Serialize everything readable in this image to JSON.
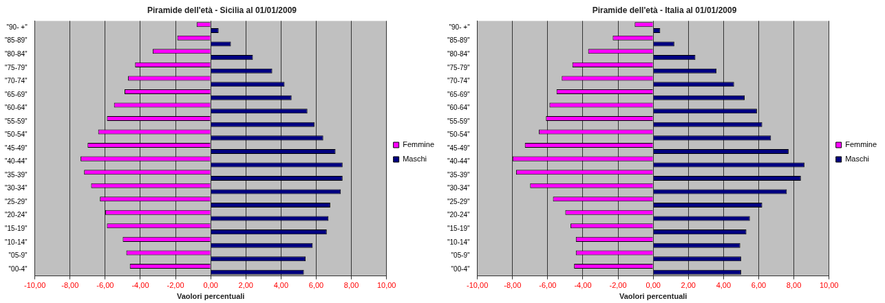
{
  "chart_data": [
    {
      "type": "bar",
      "orientation": "horizontal",
      "title": "Piramide dell'età - Sicilia al 01/01/2009",
      "xlabel": "Vaolori percentuali",
      "categories": [
        "\"90- +\"",
        "\"85-89\"",
        "\"80-84\"",
        "\"75-79\"",
        "\"70-74\"",
        "\"65-69\"",
        "\"60-64\"",
        "\"55-59\"",
        "\"50-54\"",
        "\"45-49\"",
        "\"40-44\"",
        "\"35-39\"",
        "\"30-34\"",
        "\"25-29\"",
        "\"20-24\"",
        "\"15-19\"",
        "\"10-14\"",
        "\"05-9\"",
        "\"00-4\""
      ],
      "series": [
        {
          "name": "Femmine",
          "color": "#ff00ff",
          "values": [
            -0.8,
            -1.9,
            -3.3,
            -4.3,
            -4.7,
            -4.9,
            -5.5,
            -5.9,
            -6.4,
            -7.0,
            -7.4,
            -7.2,
            -6.8,
            -6.3,
            -6.0,
            -5.9,
            -5.0,
            -4.8,
            -4.6
          ]
        },
        {
          "name": "Maschi",
          "color": "#000080",
          "values": [
            0.45,
            1.15,
            2.4,
            3.5,
            4.2,
            4.6,
            5.5,
            5.9,
            6.4,
            7.1,
            7.5,
            7.5,
            7.4,
            6.8,
            6.7,
            6.6,
            5.8,
            5.4,
            5.3
          ]
        }
      ],
      "xlim": [
        -10,
        10
      ],
      "xticks": [
        {
          "value": -10,
          "label": "-10,00"
        },
        {
          "value": -8,
          "label": "-8,00"
        },
        {
          "value": -6,
          "label": "-6,00"
        },
        {
          "value": -4,
          "label": "-4,00"
        },
        {
          "value": -2,
          "label": "-2,00"
        },
        {
          "value": 0,
          "label": "0,00"
        },
        {
          "value": 2,
          "label": "2,00"
        },
        {
          "value": 4,
          "label": "4,00"
        },
        {
          "value": 6,
          "label": "6,00"
        },
        {
          "value": 8,
          "label": "8,00"
        },
        {
          "value": 10,
          "label": "10,00"
        }
      ],
      "grid": "x",
      "legend": "right"
    },
    {
      "type": "bar",
      "orientation": "horizontal",
      "title": "Piramide dell'età - Italia al 01/01/2009",
      "xlabel": "Vaolori percentuali",
      "categories": [
        "\"90- +\"",
        "\"85-89\"",
        "\"80-84\"",
        "\"75-79\"",
        "\"70-74\"",
        "\"65-69\"",
        "\"60-64\"",
        "\"55-59\"",
        "\"50-54\"",
        "\"45-49\"",
        "\"40-44\"",
        "\"35-39\"",
        "\"30-34\"",
        "\"25-29\"",
        "\"20-24\"",
        "\"15-19\"",
        "\"10-14\"",
        "\"05-9\"",
        "\"00-4\""
      ],
      "series": [
        {
          "name": "Femmine",
          "color": "#ff00ff",
          "values": [
            -1.05,
            -2.3,
            -3.7,
            -4.6,
            -5.2,
            -5.5,
            -5.9,
            -6.1,
            -6.5,
            -7.3,
            -8.0,
            -7.8,
            -7.0,
            -5.7,
            -5.0,
            -4.7,
            -4.4,
            -4.4,
            -4.5
          ]
        },
        {
          "name": "Maschi",
          "color": "#000080",
          "values": [
            0.4,
            1.2,
            2.4,
            3.6,
            4.6,
            5.2,
            5.9,
            6.2,
            6.7,
            7.7,
            8.6,
            8.4,
            7.6,
            6.2,
            5.5,
            5.3,
            4.95,
            5.0,
            5.0
          ]
        }
      ],
      "xlim": [
        -10,
        10
      ],
      "xticks": [
        {
          "value": -10,
          "label": "-10,00"
        },
        {
          "value": -8,
          "label": "-8,00"
        },
        {
          "value": -6,
          "label": "-6,00"
        },
        {
          "value": -4,
          "label": "-4,00"
        },
        {
          "value": -2,
          "label": "-2,00"
        },
        {
          "value": 0,
          "label": "0,00"
        },
        {
          "value": 2,
          "label": "2,00"
        },
        {
          "value": 4,
          "label": "4,00"
        },
        {
          "value": 6,
          "label": "6,00"
        },
        {
          "value": 8,
          "label": "8,00"
        },
        {
          "value": 10,
          "label": "10,00"
        }
      ],
      "grid": "x",
      "legend": "right"
    }
  ]
}
